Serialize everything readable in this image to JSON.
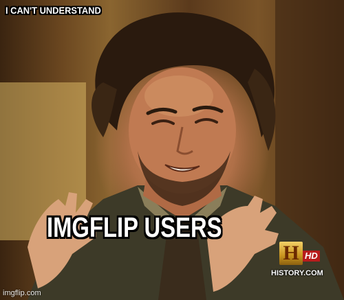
{
  "meme": {
    "top_text": "I CAN'T UNDERSTAND",
    "bottom_text": "IMGFLIP USERS"
  },
  "channel_logo": {
    "letter": "H",
    "badge": "HD",
    "site": "HISTORY.COM"
  },
  "watermark": "imgflip.com",
  "colors": {
    "caption_text": "#ffffff",
    "caption_outline": "#000000",
    "logo_gold": "#d4a23a",
    "logo_badge_red": "#b71c1c"
  }
}
